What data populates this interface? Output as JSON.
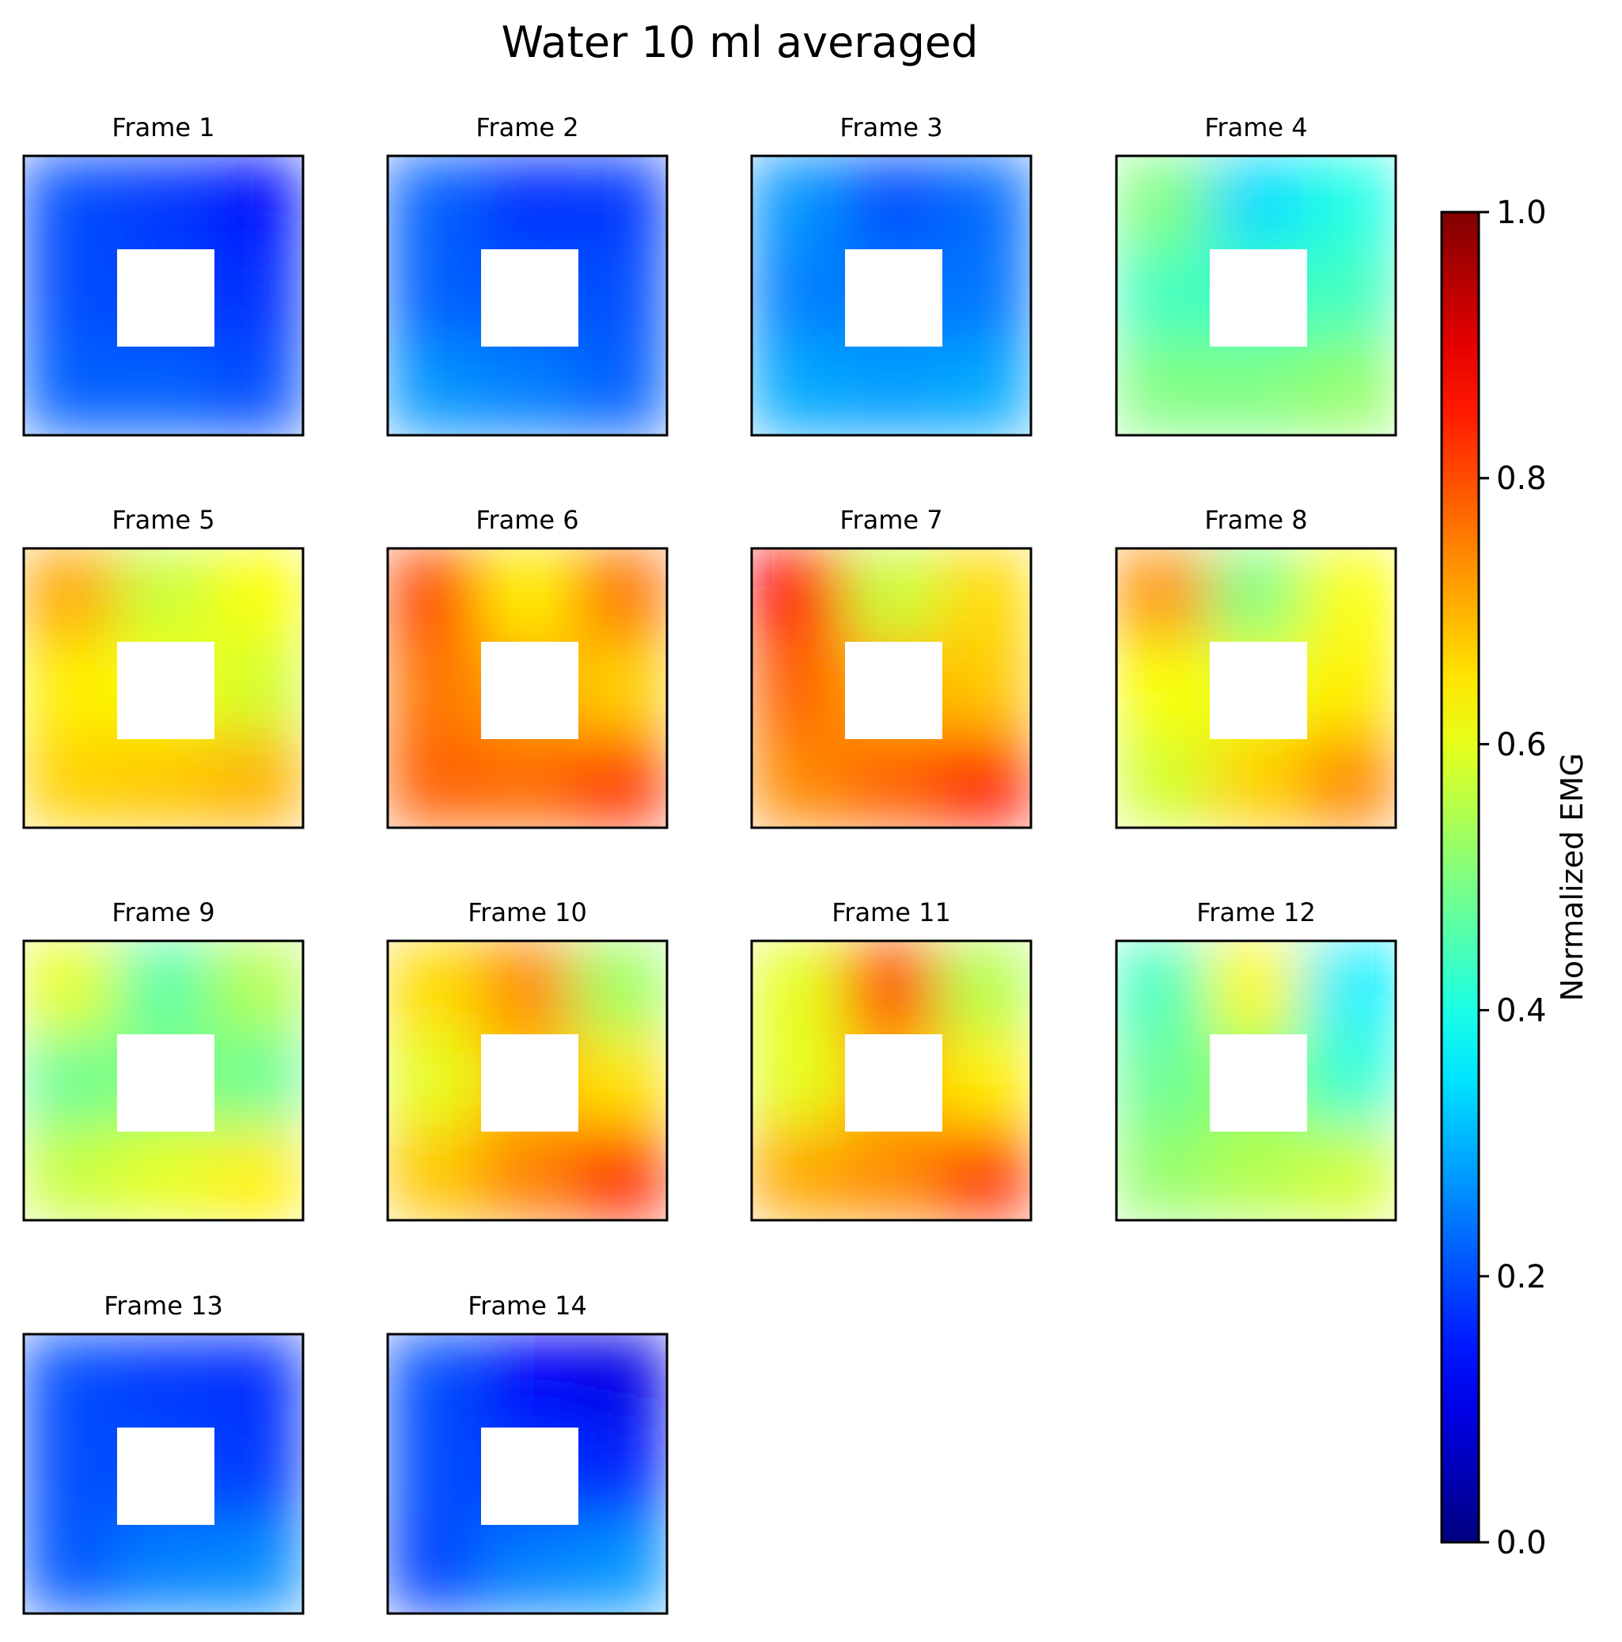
{
  "chart_data": {
    "type": "heatmap",
    "title": "Water 10 ml averaged",
    "colormap": "jet",
    "colorbar": {
      "label": "Normalized EMG",
      "range": [
        0,
        1
      ],
      "ticks": [
        "0.0",
        "0.2",
        "0.4",
        "0.6",
        "0.8",
        "1.0"
      ]
    },
    "grid_layout": {
      "rows": 4,
      "cols": 4
    },
    "frames": [
      {
        "name": "Frame 1",
        "grid": [
          [
            0.2,
            0.18,
            0.14
          ],
          [
            0.2,
            null,
            0.17
          ],
          [
            0.22,
            0.22,
            0.2
          ]
        ]
      },
      {
        "name": "Frame 2",
        "grid": [
          [
            0.22,
            0.17,
            0.18
          ],
          [
            0.22,
            null,
            0.2
          ],
          [
            0.27,
            0.25,
            0.22
          ]
        ]
      },
      {
        "name": "Frame 3",
        "grid": [
          [
            0.27,
            0.2,
            0.23
          ],
          [
            0.25,
            null,
            0.24
          ],
          [
            0.29,
            0.28,
            0.29
          ]
        ]
      },
      {
        "name": "Frame 4",
        "grid": [
          [
            0.5,
            0.34,
            0.4
          ],
          [
            0.44,
            null,
            0.44
          ],
          [
            0.5,
            0.5,
            0.52
          ]
        ]
      },
      {
        "name": "Frame 5",
        "grid": [
          [
            0.71,
            0.57,
            0.62
          ],
          [
            0.64,
            null,
            0.58
          ],
          [
            0.67,
            0.68,
            0.7
          ]
        ]
      },
      {
        "name": "Frame 6",
        "grid": [
          [
            0.8,
            0.64,
            0.76
          ],
          [
            0.76,
            null,
            0.67
          ],
          [
            0.78,
            0.77,
            0.82
          ]
        ]
      },
      {
        "name": "Frame 7",
        "grid": [
          [
            0.87,
            0.57,
            0.66
          ],
          [
            0.78,
            null,
            0.68
          ],
          [
            0.74,
            0.78,
            0.84
          ]
        ]
      },
      {
        "name": "Frame 8",
        "grid": [
          [
            0.73,
            0.5,
            0.62
          ],
          [
            0.62,
            null,
            0.64
          ],
          [
            0.58,
            0.67,
            0.74
          ]
        ]
      },
      {
        "name": "Frame 9",
        "grid": [
          [
            0.6,
            0.46,
            0.55
          ],
          [
            0.48,
            null,
            0.48
          ],
          [
            0.57,
            0.6,
            0.64
          ]
        ]
      },
      {
        "name": "Frame 10",
        "grid": [
          [
            0.66,
            0.74,
            0.53
          ],
          [
            0.6,
            null,
            0.65
          ],
          [
            0.68,
            0.75,
            0.83
          ]
        ]
      },
      {
        "name": "Frame 11",
        "grid": [
          [
            0.6,
            0.8,
            0.55
          ],
          [
            0.6,
            null,
            0.64
          ],
          [
            0.71,
            0.74,
            0.82
          ]
        ]
      },
      {
        "name": "Frame 12",
        "grid": [
          [
            0.44,
            0.63,
            0.36
          ],
          [
            0.48,
            null,
            0.42
          ],
          [
            0.52,
            0.55,
            0.58
          ]
        ]
      },
      {
        "name": "Frame 13",
        "grid": [
          [
            0.2,
            0.18,
            0.17
          ],
          [
            0.2,
            null,
            0.18
          ],
          [
            0.21,
            0.25,
            0.26
          ]
        ]
      },
      {
        "name": "Frame 14",
        "grid": [
          [
            0.2,
            0.12,
            0.1
          ],
          [
            0.2,
            null,
            0.16
          ],
          [
            0.19,
            0.25,
            0.27
          ]
        ]
      }
    ]
  }
}
